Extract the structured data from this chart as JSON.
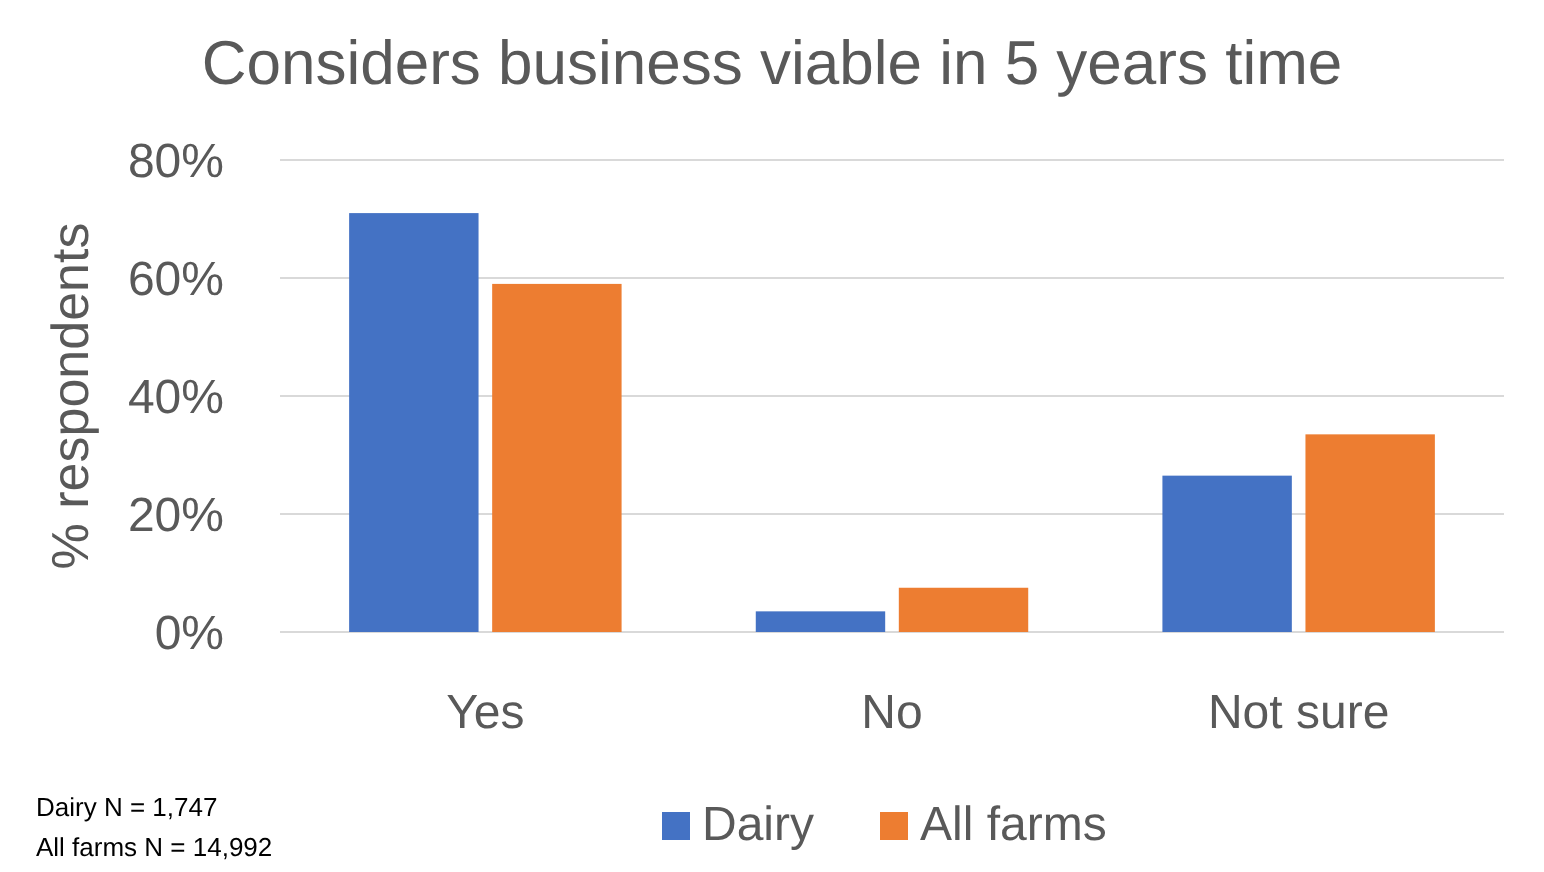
{
  "chart_data": {
    "type": "bar",
    "title": "Considers business viable in 5 years time",
    "ylabel": "% respondents",
    "categories": [
      "Yes",
      "No",
      "Not sure"
    ],
    "series": [
      {
        "name": "Dairy",
        "color": "#4472c4",
        "values": [
          71,
          3.5,
          26.5
        ]
      },
      {
        "name": "All farms",
        "color": "#ed7d31",
        "values": [
          59,
          7.5,
          33.5
        ]
      }
    ],
    "ylim": [
      0,
      80
    ],
    "yticks": [
      {
        "value": 0,
        "label": "0%"
      },
      {
        "value": 20,
        "label": "20%"
      },
      {
        "value": 40,
        "label": "40%"
      },
      {
        "value": 60,
        "label": "60%"
      },
      {
        "value": 80,
        "label": "80%"
      }
    ],
    "grid": "y",
    "legend": "bottom",
    "annotations": [
      "Dairy N = 1,747",
      "All farms N = 14,992"
    ]
  }
}
